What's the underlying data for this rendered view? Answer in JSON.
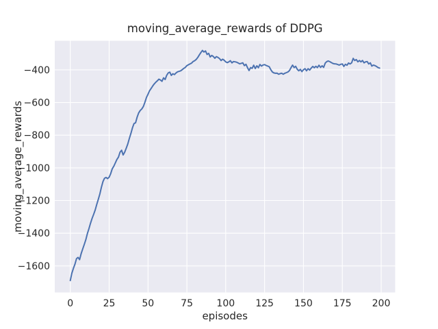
{
  "chart_data": {
    "type": "line",
    "title": "moving_average_rewards of DDPG",
    "xlabel": "episodes",
    "ylabel": "moving_average_rewards",
    "x_ticks": [
      0,
      25,
      50,
      75,
      100,
      125,
      150,
      175,
      200
    ],
    "y_ticks": [
      -400,
      -600,
      -800,
      -1000,
      -1200,
      -1400,
      -1600
    ],
    "xlim": [
      -10,
      209
    ],
    "ylim": [
      -1763,
      -222
    ],
    "grid": true,
    "legend": "none",
    "series": [
      {
        "name": "moving_average_rewards",
        "color": "#4c72b0",
        "x_start": 0,
        "x_step": 1,
        "values": [
          -1690,
          -1645,
          -1615,
          -1590,
          -1556,
          -1548,
          -1562,
          -1525,
          -1496,
          -1468,
          -1440,
          -1402,
          -1372,
          -1340,
          -1310,
          -1285,
          -1258,
          -1225,
          -1193,
          -1160,
          -1120,
          -1085,
          -1064,
          -1059,
          -1066,
          -1057,
          -1035,
          -1006,
          -990,
          -969,
          -949,
          -934,
          -904,
          -892,
          -921,
          -904,
          -879,
          -854,
          -820,
          -789,
          -754,
          -729,
          -724,
          -689,
          -664,
          -649,
          -639,
          -624,
          -599,
          -569,
          -549,
          -528,
          -514,
          -499,
          -486,
          -476,
          -467,
          -457,
          -462,
          -470,
          -449,
          -459,
          -434,
          -419,
          -414,
          -434,
          -424,
          -429,
          -419,
          -412,
          -409,
          -406,
          -399,
          -391,
          -385,
          -374,
          -369,
          -364,
          -359,
          -349,
          -344,
          -336,
          -324,
          -309,
          -294,
          -281,
          -291,
          -284,
          -306,
          -299,
          -321,
          -312,
          -318,
          -329,
          -319,
          -324,
          -331,
          -343,
          -335,
          -341,
          -351,
          -356,
          -351,
          -344,
          -357,
          -349,
          -351,
          -353,
          -358,
          -363,
          -360,
          -357,
          -374,
          -366,
          -386,
          -404,
          -386,
          -391,
          -372,
          -392,
          -375,
          -387,
          -367,
          -377,
          -370,
          -368,
          -373,
          -377,
          -381,
          -399,
          -413,
          -419,
          -421,
          -420,
          -427,
          -423,
          -421,
          -427,
          -421,
          -417,
          -413,
          -404,
          -387,
          -371,
          -386,
          -378,
          -396,
          -406,
          -397,
          -411,
          -399,
          -393,
          -406,
          -393,
          -401,
          -389,
          -379,
          -387,
          -378,
          -386,
          -372,
          -385,
          -375,
          -385,
          -359,
          -349,
          -346,
          -350,
          -356,
          -361,
          -363,
          -364,
          -367,
          -371,
          -366,
          -364,
          -379,
          -366,
          -372,
          -358,
          -364,
          -357,
          -330,
          -343,
          -337,
          -351,
          -343,
          -351,
          -343,
          -357,
          -351,
          -349,
          -364,
          -357,
          -377,
          -371,
          -374,
          -379,
          -386,
          -389
        ]
      }
    ],
    "style": {
      "figure_background": "#ffffff",
      "axes_background": "#eaeaf2",
      "grid_color": "#ffffff",
      "text_color": "#262626",
      "line_color": "#4c72b0"
    }
  }
}
